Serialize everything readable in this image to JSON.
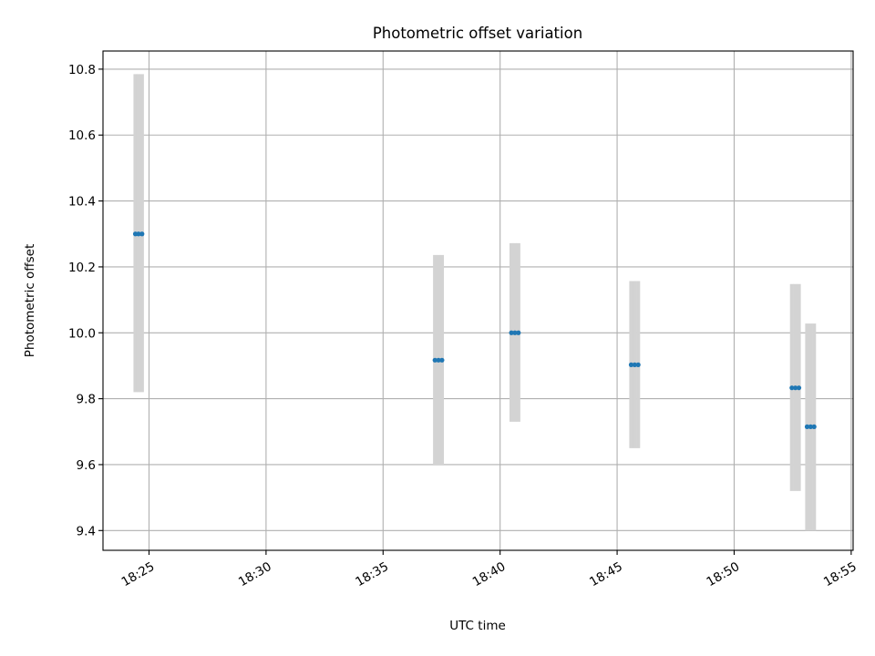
{
  "chart_data": {
    "type": "scatter",
    "title": "Photometric offset variation",
    "xlabel": "UTC time",
    "ylabel": "Photometric offset",
    "x_axis_kind": "time",
    "x_ticks": [
      "18:25",
      "18:30",
      "18:35",
      "18:40",
      "18:45",
      "18:50",
      "18:55"
    ],
    "y_ticks": [
      "9.4",
      "9.6",
      "9.8",
      "10.0",
      "10.2",
      "10.4",
      "10.6",
      "10.8"
    ],
    "xlim": [
      "18:23:02",
      "18:55:05"
    ],
    "ylim": [
      9.34,
      10.855
    ],
    "grid": true,
    "series": [
      {
        "marker_color": "#1f77b4",
        "errorbar_color": "#d3d3d3",
        "points": [
          {
            "x": "18:24:25",
            "y": 10.3,
            "yerr_low": 9.82,
            "yerr_high": 10.785
          },
          {
            "x": "18:24:33",
            "y": 10.3,
            "yerr_low": 9.82,
            "yerr_high": 10.785
          },
          {
            "x": "18:24:42",
            "y": 10.3,
            "yerr_low": 9.82,
            "yerr_high": 10.785
          },
          {
            "x": "18:37:13",
            "y": 9.917,
            "yerr_low": 9.6,
            "yerr_high": 10.236
          },
          {
            "x": "18:37:22",
            "y": 9.917,
            "yerr_low": 9.6,
            "yerr_high": 10.236
          },
          {
            "x": "18:37:31",
            "y": 9.917,
            "yerr_low": 9.6,
            "yerr_high": 10.236
          },
          {
            "x": "18:40:29",
            "y": 10.0,
            "yerr_low": 9.73,
            "yerr_high": 10.272
          },
          {
            "x": "18:40:38",
            "y": 10.0,
            "yerr_low": 9.73,
            "yerr_high": 10.272
          },
          {
            "x": "18:40:47",
            "y": 10.0,
            "yerr_low": 9.73,
            "yerr_high": 10.272
          },
          {
            "x": "18:45:36",
            "y": 9.903,
            "yerr_low": 9.65,
            "yerr_high": 10.157
          },
          {
            "x": "18:45:45",
            "y": 9.903,
            "yerr_low": 9.65,
            "yerr_high": 10.157
          },
          {
            "x": "18:45:54",
            "y": 9.903,
            "yerr_low": 9.65,
            "yerr_high": 10.157
          },
          {
            "x": "18:52:28",
            "y": 9.833,
            "yerr_low": 9.52,
            "yerr_high": 10.148
          },
          {
            "x": "18:52:37",
            "y": 9.833,
            "yerr_low": 9.52,
            "yerr_high": 10.148
          },
          {
            "x": "18:52:46",
            "y": 9.833,
            "yerr_low": 9.52,
            "yerr_high": 10.148
          },
          {
            "x": "18:53:07",
            "y": 9.715,
            "yerr_low": 9.4,
            "yerr_high": 10.028
          },
          {
            "x": "18:53:16",
            "y": 9.715,
            "yerr_low": 9.4,
            "yerr_high": 10.028
          },
          {
            "x": "18:53:25",
            "y": 9.715,
            "yerr_low": 9.4,
            "yerr_high": 10.028
          }
        ]
      }
    ]
  }
}
